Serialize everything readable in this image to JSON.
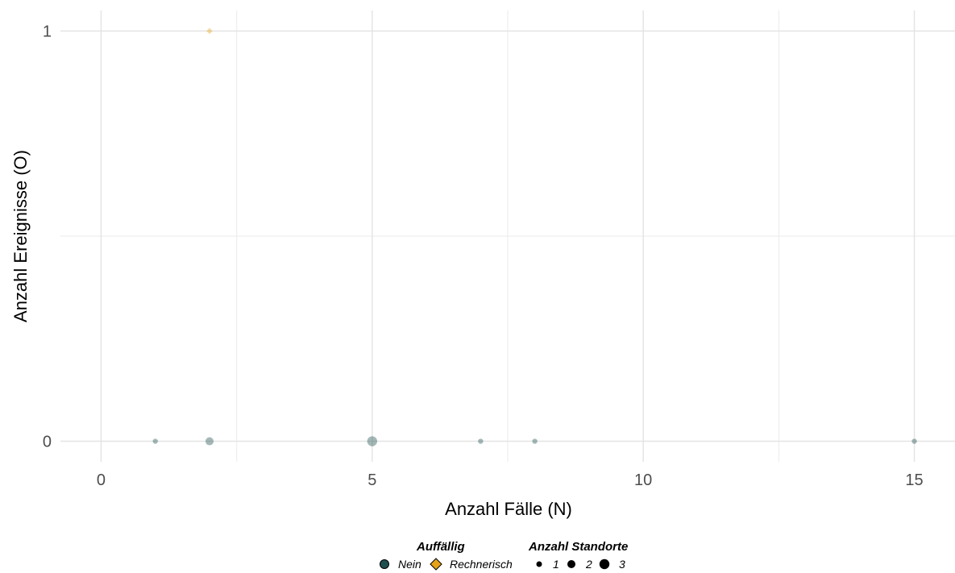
{
  "chart_data": {
    "type": "scatter",
    "xlabel": "Anzahl Fälle (N)",
    "ylabel": "Anzahl Ereignisse (O)",
    "xlim": [
      -0.75,
      15.75
    ],
    "ylim": [
      -0.05,
      1.05
    ],
    "x_ticks": [
      0,
      5,
      10,
      15
    ],
    "x_tick_labels": [
      "0",
      "5",
      "10",
      "15"
    ],
    "y_ticks": [
      0,
      1
    ],
    "y_tick_labels": [
      "0",
      "1"
    ],
    "grid": true,
    "legend_position": "bottom",
    "points": [
      {
        "x": 1,
        "y": 0,
        "group": "Nein",
        "size": 1
      },
      {
        "x": 2,
        "y": 0,
        "group": "Nein",
        "size": 2
      },
      {
        "x": 5,
        "y": 0,
        "group": "Nein",
        "size": 3
      },
      {
        "x": 7,
        "y": 0,
        "group": "Nein",
        "size": 1
      },
      {
        "x": 8,
        "y": 0,
        "group": "Nein",
        "size": 1
      },
      {
        "x": 15,
        "y": 0,
        "group": "Nein",
        "size": 1
      },
      {
        "x": 2,
        "y": 1,
        "group": "Rechnerisch",
        "size": 1
      }
    ],
    "legend_color": {
      "title": "Auffällig",
      "entries": [
        {
          "label": "Nein",
          "color": "#1f4e4e",
          "shape": "circle"
        },
        {
          "label": "Rechnerisch",
          "color": "#e6a31a",
          "shape": "diamond"
        }
      ]
    },
    "legend_size": {
      "title": "Anzahl Standorte",
      "entries": [
        {
          "label": "1",
          "value": 1
        },
        {
          "label": "2",
          "value": 2
        },
        {
          "label": "3",
          "value": 3
        }
      ]
    },
    "point_opacity": 0.4
  }
}
